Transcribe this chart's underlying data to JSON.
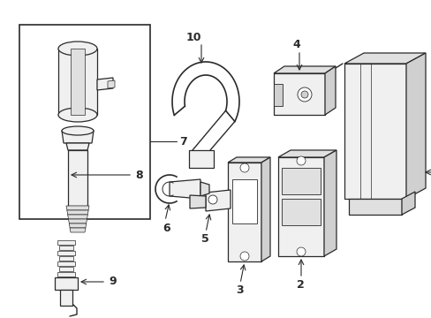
{
  "bg": "#ffffff",
  "lc": "#2a2a2a",
  "fc": "#f0f0f0",
  "fc2": "#e0e0e0",
  "fc3": "#d0d0d0",
  "figsize": [
    4.89,
    3.6
  ],
  "dpi": 100
}
